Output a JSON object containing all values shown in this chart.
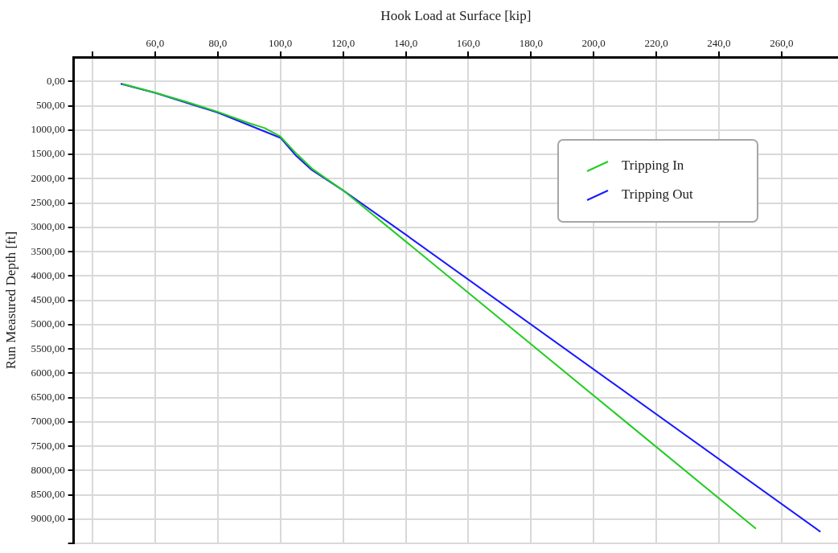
{
  "chart_data": {
    "type": "line",
    "xlabel": "Hook Load at Surface [kip]",
    "ylabel": "Run Measured Depth [ft]",
    "xlim": [
      34,
      278
    ],
    "xticks": [
      {
        "value": 40,
        "label": null
      },
      {
        "value": 60,
        "label": "60,0"
      },
      {
        "value": 80,
        "label": "80,0"
      },
      {
        "value": 100,
        "label": "100,0"
      },
      {
        "value": 120,
        "label": "120,0"
      },
      {
        "value": 140,
        "label": "140,0"
      },
      {
        "value": 160,
        "label": "160,0"
      },
      {
        "value": 180,
        "label": "180,0"
      },
      {
        "value": 200,
        "label": "200,0"
      },
      {
        "value": 220,
        "label": "220,0"
      },
      {
        "value": 240,
        "label": "240,0"
      },
      {
        "value": 260,
        "label": "260,0"
      }
    ],
    "ylim": [
      9500,
      -500
    ],
    "yticks": [
      {
        "value": 0,
        "label": "0,00"
      },
      {
        "value": 500,
        "label": "500,00"
      },
      {
        "value": 1000,
        "label": "1000,00"
      },
      {
        "value": 1500,
        "label": "1500,00"
      },
      {
        "value": 2000,
        "label": "2000,00"
      },
      {
        "value": 2500,
        "label": "2500,00"
      },
      {
        "value": 3000,
        "label": "3000,00"
      },
      {
        "value": 3500,
        "label": "3500,00"
      },
      {
        "value": 4000,
        "label": "4000,00"
      },
      {
        "value": 4500,
        "label": "4500,00"
      },
      {
        "value": 5000,
        "label": "5000,00"
      },
      {
        "value": 5500,
        "label": "5500,00"
      },
      {
        "value": 6000,
        "label": "6000,00"
      },
      {
        "value": 6500,
        "label": "6500,00"
      },
      {
        "value": 7000,
        "label": "7000,00"
      },
      {
        "value": 7500,
        "label": "7500,00"
      },
      {
        "value": 8000,
        "label": "8000,00"
      },
      {
        "value": 8500,
        "label": "8500,00"
      },
      {
        "value": 9000,
        "label": "9000,00"
      },
      {
        "value": 9500,
        "label": null
      }
    ],
    "series": [
      {
        "name": "Tripping In",
        "color": "#22cc22",
        "x": [
          49.5,
          60,
          70,
          80,
          90,
          95,
          100,
          105,
          110,
          120,
          140,
          251.8
        ],
        "values": [
          50,
          230,
          420,
          625,
          860,
          960,
          1135,
          1480,
          1790,
          2240,
          3290,
          9194
        ]
      },
      {
        "name": "Tripping Out",
        "color": "#1a1aff",
        "x": [
          49,
          60,
          80,
          100,
          105,
          110,
          120,
          140,
          272.4
        ],
        "values": [
          50,
          235,
          640,
          1160,
          1530,
          1820,
          2240,
          3150,
          9260
        ]
      }
    ],
    "grid": true,
    "legend": "top right",
    "marker": "none",
    "line_style": "solid"
  }
}
